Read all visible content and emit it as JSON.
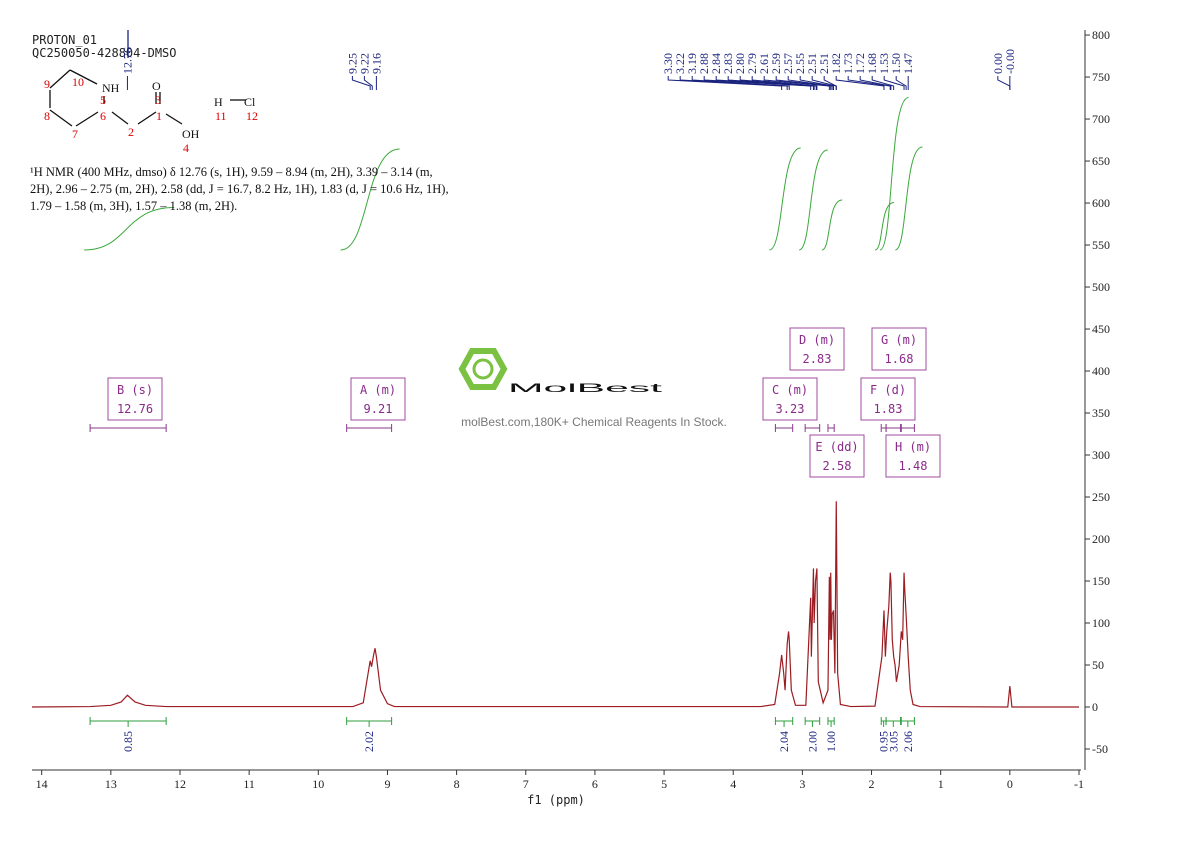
{
  "header": {
    "title": "PROTON_01",
    "sample": "QC250050-428804-DMSO"
  },
  "structure": {
    "atoms": [
      "NH",
      "O",
      "OH",
      "H",
      "Cl"
    ],
    "numbers": [
      10,
      9,
      8,
      7,
      6,
      5,
      4,
      3,
      2,
      1,
      11,
      12
    ]
  },
  "description": "¹H NMR (400 MHz, dmso) δ 12.76 (s, 1H), 9.59 – 8.94 (m, 2H), 3.39 – 3.14 (m, 2H), 2.96 – 2.75 (m, 2H), 2.58 (dd, J = 16.7, 8.2 Hz, 1H), 1.83 (d, J = 10.6 Hz, 1H), 1.79 – 1.58 (m, 3H), 1.57 – 1.38 (m, 2H).",
  "watermark": {
    "brand": "MolBest",
    "tagline": "molBest.com,180K+ Chemical Reagents In Stock."
  },
  "chart_data": {
    "type": "nmr",
    "x_label": "f1 (ppm)",
    "xlim": [
      14.14,
      -1
    ],
    "xticks": [
      14,
      13,
      12,
      11,
      10,
      9,
      8,
      7,
      6,
      5,
      4,
      3,
      2,
      1,
      0,
      -1
    ],
    "ylim": [
      -75,
      806
    ],
    "yticks": [
      -50,
      0,
      50,
      100,
      150,
      200,
      250,
      300,
      350,
      400,
      450,
      500,
      550,
      600,
      650,
      700,
      750,
      800
    ],
    "line_color": "#9b1c22",
    "spectrum": {
      "x": [
        14.14,
        13.3,
        13.0,
        12.85,
        12.76,
        12.65,
        12.5,
        12.2,
        9.5,
        9.35,
        9.27,
        9.25,
        9.23,
        9.2,
        9.18,
        9.16,
        9.1,
        9.0,
        8.9,
        3.6,
        3.4,
        3.33,
        3.3,
        3.27,
        3.25,
        3.22,
        3.2,
        3.19,
        3.16,
        3.1,
        2.95,
        2.88,
        2.87,
        2.84,
        2.83,
        2.81,
        2.79,
        2.77,
        2.7,
        2.63,
        2.61,
        2.6,
        2.59,
        2.58,
        2.57,
        2.55,
        2.53,
        2.51,
        2.49,
        2.45,
        2.3,
        1.95,
        1.85,
        1.82,
        1.8,
        1.78,
        1.75,
        1.73,
        1.72,
        1.7,
        1.68,
        1.66,
        1.64,
        1.6,
        1.57,
        1.55,
        1.53,
        1.52,
        1.5,
        1.47,
        1.44,
        1.4,
        1.3,
        0.03,
        0.0,
        -0.03,
        -1.0
      ],
      "values": [
        0,
        0.5,
        2,
        6,
        14,
        6,
        2,
        0.5,
        0.5,
        5,
        45,
        55,
        48,
        62,
        70,
        60,
        20,
        4,
        0.5,
        0.5,
        3,
        40,
        62,
        40,
        20,
        75,
        90,
        80,
        20,
        2,
        2,
        130,
        60,
        165,
        100,
        150,
        165,
        30,
        5,
        20,
        155,
        80,
        160,
        80,
        110,
        115,
        40,
        245,
        40,
        3,
        0.5,
        1,
        60,
        115,
        60,
        90,
        120,
        160,
        150,
        80,
        60,
        50,
        30,
        50,
        90,
        80,
        160,
        140,
        110,
        60,
        20,
        3,
        0.5,
        0,
        25,
        0,
        0
      ]
    },
    "peaks": [
      12.76,
      9.25,
      9.22,
      9.16,
      {
        "value": 3.3,
        "label": "3.30"
      },
      3.22,
      3.19,
      2.88,
      2.84,
      2.83,
      {
        "value": 2.8,
        "label": "2.80"
      },
      2.79,
      2.61,
      2.59,
      2.57,
      2.55,
      2.51,
      2.51,
      1.82,
      1.73,
      1.72,
      1.68,
      1.53,
      {
        "value": 1.5,
        "label": "1.50"
      },
      1.47,
      {
        "value": 0,
        "label": "0.00"
      },
      {
        "value": 0,
        "label": "-0.00"
      }
    ],
    "multiplets": [
      {
        "name": "B (s)",
        "shift": 12.76
      },
      {
        "name": "A (m)",
        "shift": 9.21
      },
      {
        "name": "C (m)",
        "shift": 3.23
      },
      {
        "name": "D (m)",
        "shift": 2.83
      },
      {
        "name": "E (dd)",
        "shift": 2.58
      },
      {
        "name": "F (d)",
        "shift": 1.83
      },
      {
        "name": "G (m)",
        "shift": 1.68
      },
      {
        "name": "H (m)",
        "shift": 1.48
      }
    ],
    "integrals": [
      {
        "from": 13.3,
        "to": 12.2,
        "value": 0.85
      },
      {
        "from": 9.59,
        "to": 8.94,
        "value": 2.02
      },
      {
        "from": 3.39,
        "to": 3.14,
        "value": 2.04
      },
      {
        "from": 2.96,
        "to": 2.75,
        "value": 2,
        "label": "2.00"
      },
      {
        "from": 2.63,
        "to": 2.54,
        "value": 1,
        "label": "1.00"
      },
      {
        "from": 1.86,
        "to": 1.79,
        "value": 0.95
      },
      {
        "from": 1.79,
        "to": 1.58,
        "value": 3.05
      },
      {
        "from": 1.57,
        "to": 1.38,
        "value": 2.06
      }
    ]
  }
}
